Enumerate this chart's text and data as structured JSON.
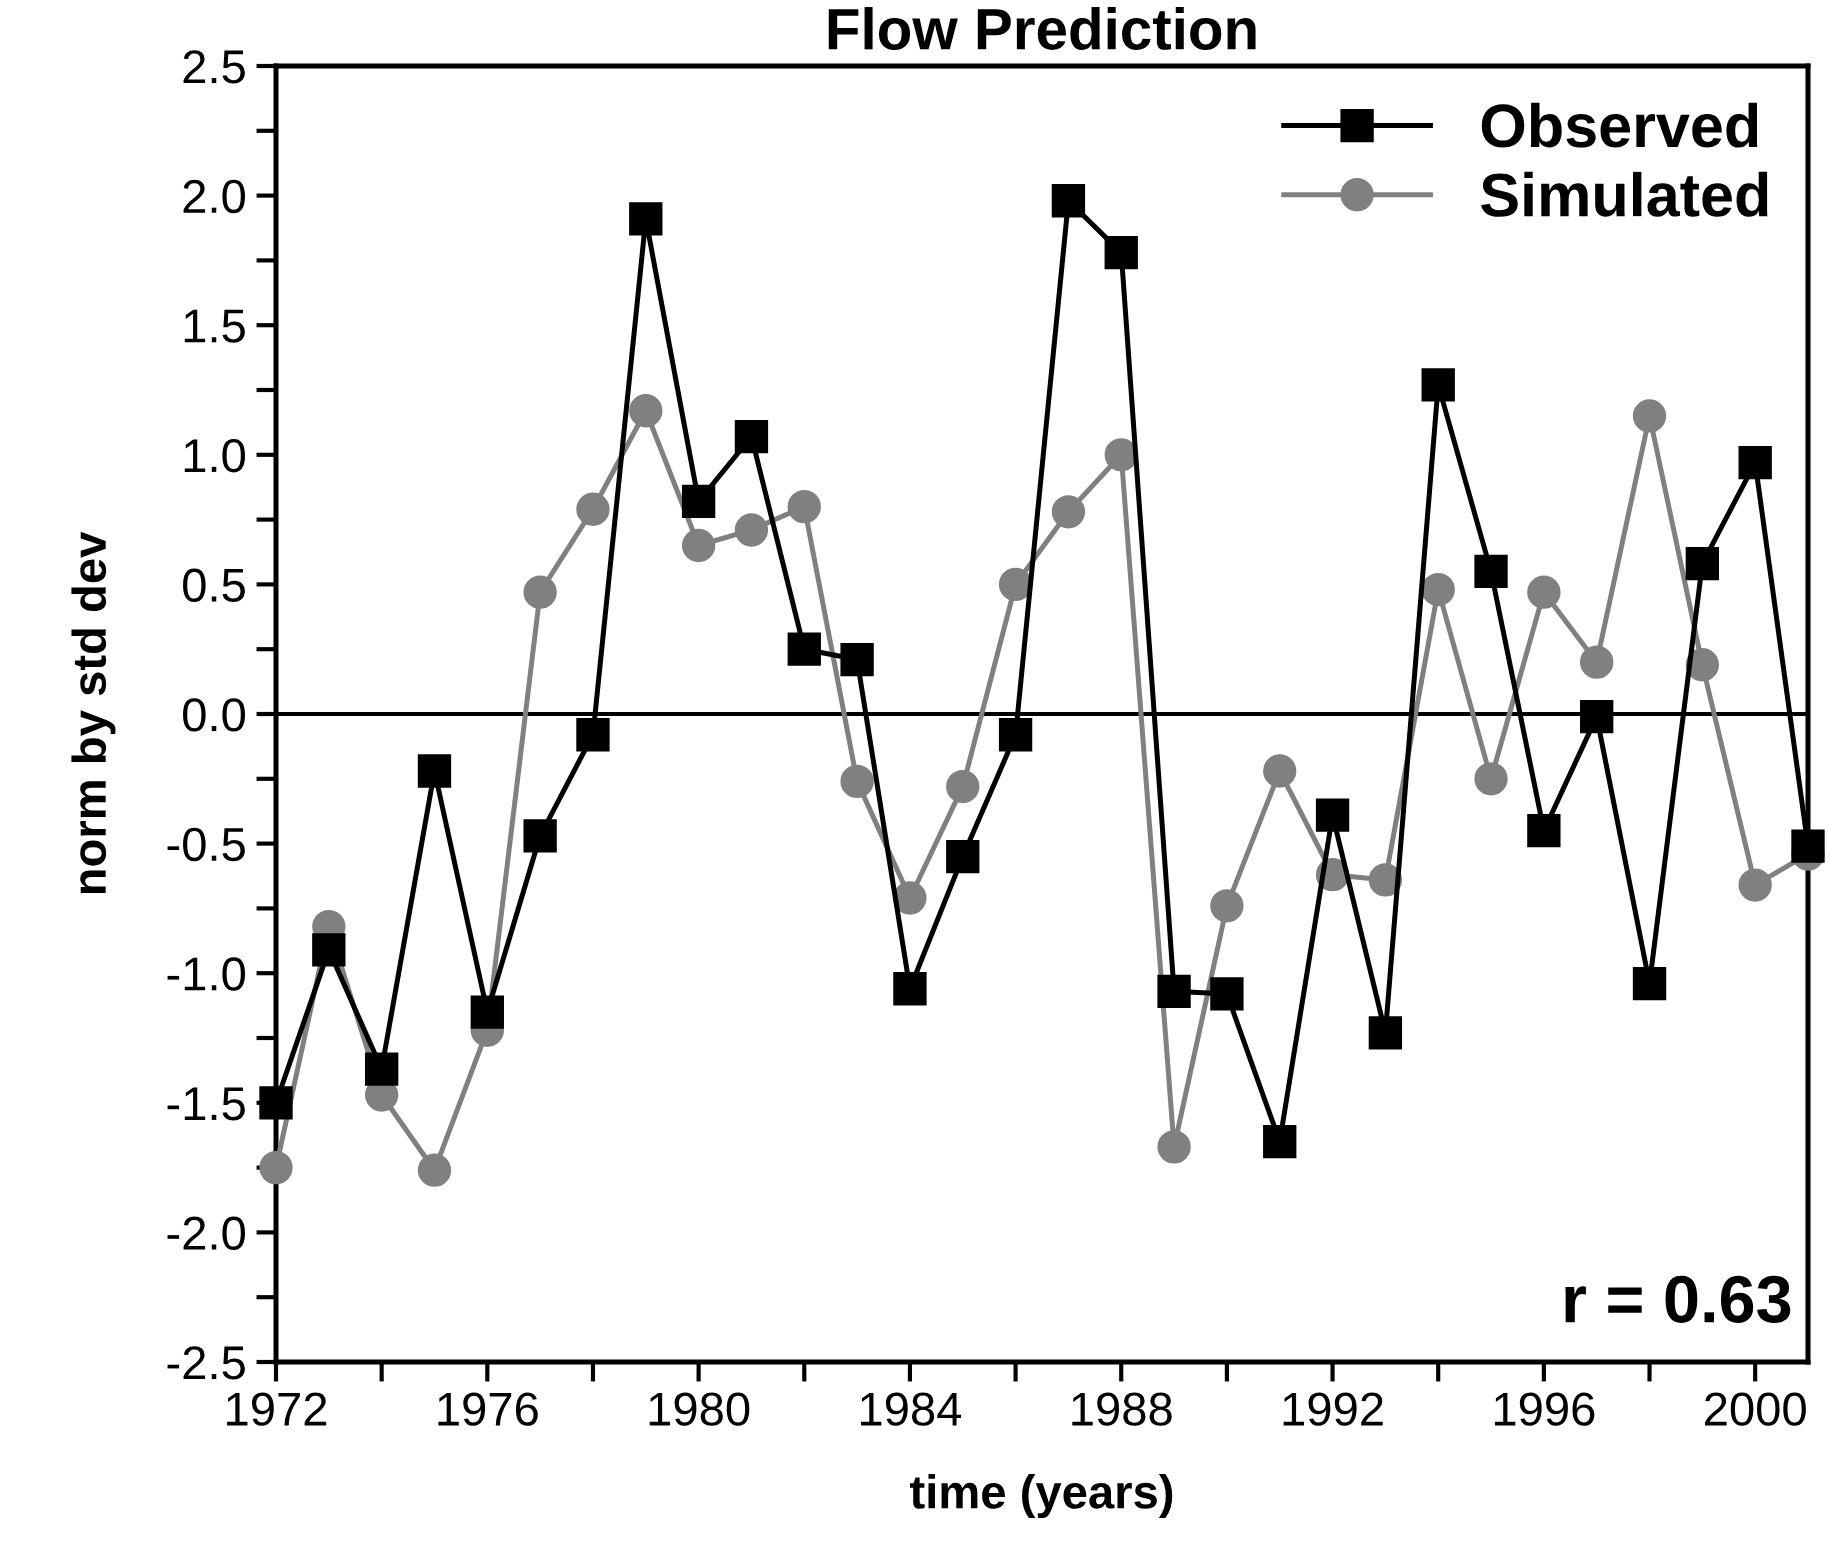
{
  "chart_data": {
    "type": "line",
    "title": "Flow Prediction",
    "xlabel": "time (years)",
    "ylabel": "norm by std dev",
    "x": [
      1972,
      1973,
      1974,
      1975,
      1976,
      1977,
      1978,
      1979,
      1980,
      1981,
      1982,
      1983,
      1984,
      1985,
      1986,
      1987,
      1988,
      1989,
      1990,
      1991,
      1992,
      1993,
      1994,
      1995,
      1996,
      1997,
      1998,
      1999,
      2000,
      2001
    ],
    "series": [
      {
        "name": "Observed",
        "color": "#000000",
        "marker": "square",
        "values": [
          -1.5,
          -0.91,
          -1.37,
          -0.22,
          -1.15,
          -0.47,
          -0.08,
          1.91,
          0.82,
          1.07,
          0.25,
          0.21,
          -1.06,
          -0.55,
          -0.08,
          1.98,
          1.78,
          -1.07,
          -1.08,
          -1.65,
          -0.39,
          -1.23,
          1.27,
          0.55,
          -0.45,
          -0.01,
          -1.04,
          0.58,
          0.97,
          -0.51
        ]
      },
      {
        "name": "Simulated",
        "color": "#808080",
        "marker": "circle",
        "values": [
          -1.75,
          -0.82,
          -1.47,
          -1.76,
          -1.22,
          0.47,
          0.79,
          1.17,
          0.65,
          0.71,
          0.8,
          -0.26,
          -0.71,
          -0.28,
          0.5,
          0.78,
          1.0,
          -1.67,
          -0.74,
          -0.22,
          -0.62,
          -0.64,
          0.48,
          -0.25,
          0.47,
          0.2,
          1.15,
          0.19,
          -0.66,
          -0.54
        ]
      }
    ],
    "xlim": [
      1972,
      2001
    ],
    "ylim": [
      -2.5,
      2.5
    ],
    "xticks": [
      1972,
      {
        "value": 1974,
        "label": null
      },
      1976,
      {
        "value": 1978,
        "label": null
      },
      1980,
      {
        "value": 1982,
        "label": null
      },
      1984,
      {
        "value": 1986,
        "label": null
      },
      1988,
      {
        "value": 1990,
        "label": null
      },
      1992,
      {
        "value": 1994,
        "label": null
      },
      1996,
      {
        "value": 1998,
        "label": null
      },
      2000
    ],
    "yticks": [
      {
        "value": -2.5,
        "label": "-2.5"
      },
      {
        "value": -2.25,
        "label": null
      },
      {
        "value": -2.0,
        "label": "-2.0"
      },
      {
        "value": -1.75,
        "label": null
      },
      {
        "value": -1.5,
        "label": "-1.5"
      },
      {
        "value": -1.25,
        "label": null
      },
      {
        "value": -1.0,
        "label": "-1.0"
      },
      {
        "value": -0.75,
        "label": null
      },
      {
        "value": -0.5,
        "label": "-0.5"
      },
      {
        "value": -0.25,
        "label": null
      },
      {
        "value": 0.0,
        "label": "0.0"
      },
      {
        "value": 0.25,
        "label": null
      },
      {
        "value": 0.5,
        "label": "0.5"
      },
      {
        "value": 0.75,
        "label": null
      },
      {
        "value": 1.0,
        "label": "1.0"
      },
      {
        "value": 1.25,
        "label": null
      },
      {
        "value": 1.5,
        "label": "1.5"
      },
      {
        "value": 1.75,
        "label": null
      },
      {
        "value": 2.0,
        "label": "2.0"
      },
      {
        "value": 2.25,
        "label": null
      },
      {
        "value": 2.5,
        "label": "2.5"
      }
    ],
    "ref_lines": [
      {
        "axis": "y",
        "value": 0,
        "color": "#000000",
        "line_style": "solid"
      }
    ],
    "annotations": [
      "r = 0.63"
    ],
    "legend": "top right",
    "grid": false,
    "line_style": "solid"
  }
}
